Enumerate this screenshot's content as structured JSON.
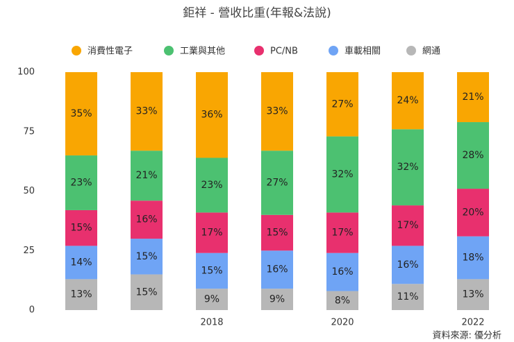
{
  "chart_data": {
    "type": "stacked_bar",
    "title": "鉅祥 - 營收比重(年報&法說)",
    "categories": [
      null,
      null,
      "2018",
      null,
      "2020",
      null,
      "2022"
    ],
    "series": [
      {
        "name": "消費性電子",
        "color": "#f9a602",
        "values": [
          35,
          33,
          36,
          33,
          27,
          24,
          21
        ],
        "value_labels": [
          "35%",
          "33%",
          "36%",
          "33%",
          "27%",
          "24%",
          "21%"
        ]
      },
      {
        "name": "工業與其他",
        "color": "#4cc171",
        "values": [
          23,
          21,
          23,
          27,
          32,
          32,
          28
        ],
        "value_labels": [
          "23%",
          "21%",
          "23%",
          "27%",
          "32%",
          "32%",
          "28%"
        ]
      },
      {
        "name": "PC/NB",
        "color": "#e8306e",
        "values": [
          15,
          16,
          17,
          15,
          17,
          17,
          20
        ],
        "value_labels": [
          "15%",
          "16%",
          "17%",
          "15%",
          "17%",
          "17%",
          "20%"
        ]
      },
      {
        "name": "車載相關",
        "color": "#6fa4f5",
        "values": [
          14,
          15,
          15,
          16,
          16,
          16,
          18
        ],
        "value_labels": [
          "14%",
          "15%",
          "15%",
          "16%",
          "16%",
          "16%",
          "18%"
        ]
      },
      {
        "name": "網通",
        "color": "#b7b7b7",
        "values": [
          13,
          15,
          9,
          9,
          8,
          11,
          13
        ],
        "value_labels": [
          "13%",
          "15%",
          "9%",
          "9%",
          "8%",
          "11%",
          "13%"
        ]
      }
    ],
    "ylim": [
      0,
      100
    ],
    "yticks": [
      0,
      25,
      50,
      75,
      100
    ],
    "source": "資料來源: 優分析"
  }
}
